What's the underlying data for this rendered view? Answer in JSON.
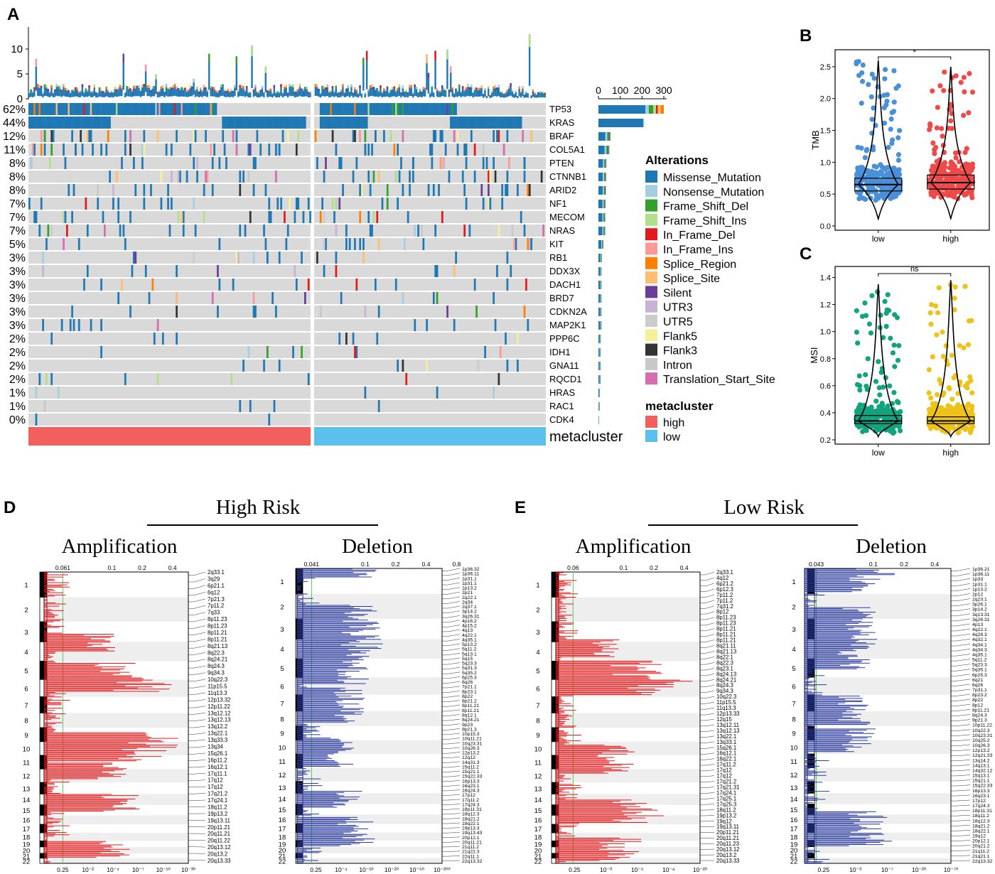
{
  "panel_labels": {
    "A": "A",
    "B": "B",
    "C": "C",
    "D": "D",
    "E": "E"
  },
  "colors": {
    "Missense_Mutation": "#1F78B4",
    "Nonsense_Mutation": "#A6CEE3",
    "Frame_Shift_Del": "#33A02C",
    "Frame_Shift_Ins": "#B2DF8A",
    "In_Frame_Del": "#E31A1C",
    "In_Frame_Ins": "#FB9A99",
    "Splice_Region": "#FF7F00",
    "Splice_Site": "#FDBF6F",
    "Silent": "#6A3D9A",
    "UTR3": "#CAB2D6",
    "UTR5": "#CCCCCC",
    "Flank5": "#F6F09B",
    "Flank3": "#333333",
    "Intron": "#C8C8C8",
    "Translation_Start_Site": "#D66DAE",
    "background_cell": "#D9D9D9",
    "high": "#F25F5C",
    "low": "#5BC0EB",
    "tmb_low": "#4A90D9",
    "tmb_high": "#EE4A4A",
    "msi_low": "#14A37F",
    "msi_high": "#EDC21A",
    "amp": "#E31A1C",
    "del": "#2B3A9E"
  },
  "chart_data": [
    {
      "type": "heatmap",
      "title": "Oncoplot",
      "genes": [
        "TP53",
        "KRAS",
        "BRAF",
        "COL5A1",
        "PTEN",
        "CTNNB1",
        "ARID2",
        "NF1",
        "MECOM",
        "NRAS",
        "KIT",
        "RB1",
        "DDX3X",
        "DACH1",
        "BRD7",
        "CDKN2A",
        "MAP2K1",
        "PPP6C",
        "IDH1",
        "GNA11",
        "RQCD1",
        "HRAS",
        "RAC1",
        "CDK4"
      ],
      "percentages": [
        "62%",
        "44%",
        "12%",
        "11%",
        "8%",
        "8%",
        "8%",
        "7%",
        "7%",
        "7%",
        "5%",
        "3%",
        "3%",
        "3%",
        "3%",
        "3%",
        "3%",
        "2%",
        "2%",
        "2%",
        "2%",
        "1%",
        "1%",
        "0%"
      ],
      "counts": [
        300,
        210,
        58,
        52,
        38,
        37,
        36,
        34,
        33,
        33,
        24,
        16,
        15,
        15,
        14,
        14,
        14,
        11,
        10,
        10,
        10,
        6,
        5,
        2
      ],
      "top_axis_ticks": [
        "0",
        "100",
        "200",
        "300"
      ],
      "tmb_axis_ticks": [
        "0",
        "5",
        "10"
      ],
      "groups": [
        "metacluster"
      ],
      "legend_title": "Alterations",
      "legend_items": [
        "Missense_Mutation",
        "Nonsense_Mutation",
        "Frame_Shift_Del",
        "Frame_Shift_Ins",
        "In_Frame_Del",
        "In_Frame_Ins",
        "Splice_Region",
        "Splice_Site",
        "Silent",
        "UTR3",
        "UTR5",
        "Flank5",
        "Flank3",
        "Intron",
        "Translation_Start_Site"
      ],
      "group_legend_title": "metacluster",
      "group_legend_items": [
        "high",
        "low"
      ],
      "annotation_label": "metacluster"
    },
    {
      "type": "scatter",
      "title": "",
      "ylabel": "TMB",
      "categories": [
        "low",
        "high"
      ],
      "ylim": [
        0,
        2.7
      ],
      "yticks": [
        "0.0",
        "0.5",
        "1.0",
        "1.5",
        "2.0",
        "2.5"
      ],
      "significance": "*",
      "medians": [
        0.65,
        0.68
      ],
      "q1": [
        0.55,
        0.58
      ],
      "q3": [
        0.75,
        0.8
      ],
      "max": [
        2.6,
        2.5
      ]
    },
    {
      "type": "scatter",
      "title": "",
      "ylabel": "MSI",
      "categories": [
        "low",
        "high"
      ],
      "ylim": [
        0.2,
        1.45
      ],
      "yticks": [
        "0.2",
        "0.4",
        "0.6",
        "0.8",
        "1.0",
        "1.2",
        "1.4"
      ],
      "significance": "ns",
      "medians": [
        0.34,
        0.34
      ],
      "q1": [
        0.32,
        0.32
      ],
      "q3": [
        0.38,
        0.37
      ],
      "max": [
        1.35,
        1.38
      ]
    },
    {
      "type": "bar",
      "title": "High Risk",
      "subtitles": [
        "Amplification",
        "Deletion"
      ],
      "amp_q_threshold": "0.061",
      "del_q_threshold": "0.041",
      "amp_top_ticks": [
        "0.061",
        "0.1",
        "0.2",
        "0.4"
      ],
      "del_top_ticks": [
        "0.041",
        "0.1",
        "0.2",
        "0.4",
        "0.8"
      ],
      "amp_bottom_ticks": [
        "0.25",
        "10⁻²",
        "10⁻⁴",
        "10⁻⁷",
        "10⁻¹⁰",
        "10⁻³⁰"
      ],
      "del_bottom_ticks": [
        "0.25",
        "10⁻⁴",
        "10⁻¹⁰",
        "10⁻²⁰",
        "10⁻⁵⁰",
        "10⁻²⁰⁰"
      ],
      "chromosomes": [
        "1",
        "2",
        "3",
        "4",
        "5",
        "6",
        "7",
        "8",
        "9",
        "10",
        "11",
        "12",
        "13",
        "14",
        "15",
        "16",
        "17",
        "18",
        "19",
        "20",
        "21",
        "22"
      ],
      "amp_peaks": [
        "2q33.1",
        "3q29",
        "6p21.1",
        "6q12",
        "7p21.3",
        "7p11.2",
        "7q33",
        "8p11.23",
        "8p11.23",
        "8p11.21",
        "8p11.21",
        "8q21.13",
        "8q22.3",
        "8q24.21",
        "8q24.3",
        "9q34.3",
        "10q22.3",
        "11p15.5",
        "11q13.3",
        "12p13.32",
        "12p11.22",
        "13q12.12",
        "13q12.13",
        "13q12.2",
        "13q22.1",
        "13q33.3",
        "13q34",
        "15q26.1",
        "16p11.2",
        "16q12.1",
        "17q11.1",
        "17q12",
        "17q12",
        "17q21.2",
        "17q24.1",
        "18q11.2",
        "19p13.2",
        "19q13.11",
        "20p11.21",
        "20q11.21",
        "20q11.22",
        "20q13.12",
        "20q13.2",
        "20q13.33"
      ],
      "del_peaks": [
        "1p36.32",
        "1p36.11",
        "1p31.1",
        "1p31.1",
        "1p13.2",
        "2p21",
        "2q22.1",
        "2q34",
        "2q37.1",
        "3p14.2",
        "3q26.31",
        "4p16.2",
        "4p15.2",
        "4q13",
        "4q22.1",
        "4q35.1",
        "5p13.2",
        "5q11.2",
        "5q13.1",
        "5q15",
        "5q23.3",
        "5q31.3",
        "5q35.2",
        "6p25.3",
        "6q26",
        "7p21.1",
        "8p23.1",
        "8p22",
        "8p21.2",
        "8p11.21",
        "8p11.21",
        "8q12.1",
        "8q24.21",
        "9p23",
        "9p21.3",
        "10p15.3",
        "10q11.21",
        "10q23.31",
        "10q26.3",
        "12p13.2",
        "12q12",
        "14q31.3",
        "15q11.2",
        "15q21.1",
        "15q22.33",
        "16p13.3",
        "16q23.1",
        "16q24.3",
        "17p12",
        "17q11.2",
        "17q24.3",
        "18p11.31",
        "18q12.3",
        "18q21.2",
        "18q22.1",
        "19p13.3",
        "19q13.43",
        "20p12.1",
        "20q11.21",
        "21q11.2",
        "21q22.3",
        "22q11.1",
        "22q13.32"
      ]
    },
    {
      "type": "bar",
      "title": "Low Risk",
      "subtitles": [
        "Amplification",
        "Deletion"
      ],
      "amp_q_threshold": "0.06",
      "del_q_threshold": "0.043",
      "amp_top_ticks": [
        "0.06",
        "0.1",
        "0.2",
        "0.4"
      ],
      "del_top_ticks": [
        "0.043",
        "0.1",
        "0.2",
        "0.4"
      ],
      "amp_bottom_ticks": [
        "0.25",
        "10⁻³",
        "10⁻⁵",
        "10⁻⁸",
        "10⁻²⁰"
      ],
      "del_bottom_ticks": [
        "0.25",
        "10⁻³",
        "10⁻⁷",
        "10⁻²⁰",
        "10⁻⁷⁰"
      ],
      "chromosomes": [
        "1",
        "2",
        "3",
        "4",
        "5",
        "6",
        "7",
        "8",
        "9",
        "10",
        "11",
        "12",
        "13",
        "14",
        "15",
        "16",
        "17",
        "18",
        "19",
        "20",
        "21",
        "22"
      ],
      "amp_peaks": [
        "2q33.1",
        "4q12",
        "6p21.2",
        "6p12.3",
        "7p11.2",
        "7p11.2",
        "7q31.2",
        "8p12",
        "8p11.23",
        "8p11.23",
        "8p11.21",
        "8p11.21",
        "8p11.21",
        "8q21.11",
        "8q21.13",
        "8q22.1",
        "8q22.3",
        "8q23.1",
        "8q24.13",
        "8q24.21",
        "8q24.3",
        "9q34.3",
        "10q22.3",
        "11p15.5",
        "11q13.3",
        "12p13.33",
        "12q15",
        "13q12.11",
        "13q12.13",
        "13q22.1",
        "13q33.1",
        "15q26.1",
        "16q12.1",
        "16q22.1",
        "17q11.2",
        "17q12",
        "17q12",
        "17q21.2",
        "17q21.31",
        "17q24.1",
        "17q25.1",
        "17q25.3",
        "18q11.2",
        "19p13.2",
        "19q12",
        "19q13.11",
        "20p11.21",
        "20q11.21",
        "20q11.23",
        "20q13.12",
        "20q13.2",
        "20q13.33"
      ],
      "del_peaks": [
        "1p36.21",
        "1p36.11",
        "1p33",
        "1p31.1",
        "1p13.2",
        "2p12",
        "2q23.1",
        "3p26.1",
        "3p14.2",
        "3q13.31",
        "3q26.31",
        "4p13",
        "4q22.1",
        "4q28.3",
        "4q32.1",
        "4q34.1",
        "4q34.3",
        "4q35.1",
        "5q11.2",
        "5q23.3",
        "5q35.1",
        "6p25.3",
        "6q21",
        "6q26",
        "7p31.1",
        "8p23.2",
        "8p22",
        "8p12",
        "8p11.21",
        "8q24.3",
        "9p21.3",
        "10p11.22",
        "10q22.3",
        "10q23.31",
        "10q25.2",
        "10q26.3",
        "12p13.2",
        "12q21.33",
        "13q14.2",
        "14q13.1",
        "14q32.12",
        "15q13.1",
        "15q21.1",
        "15q22.33",
        "16p13.3",
        "16q23.1",
        "17p12",
        "17q24.3",
        "18p11.31",
        "18q11.2",
        "18q12.3",
        "18q21.2",
        "18q22.1",
        "19q12",
        "20p12.1",
        "20q21.2",
        "21q11.2",
        "21q21.1",
        "22q13.32"
      ]
    }
  ]
}
